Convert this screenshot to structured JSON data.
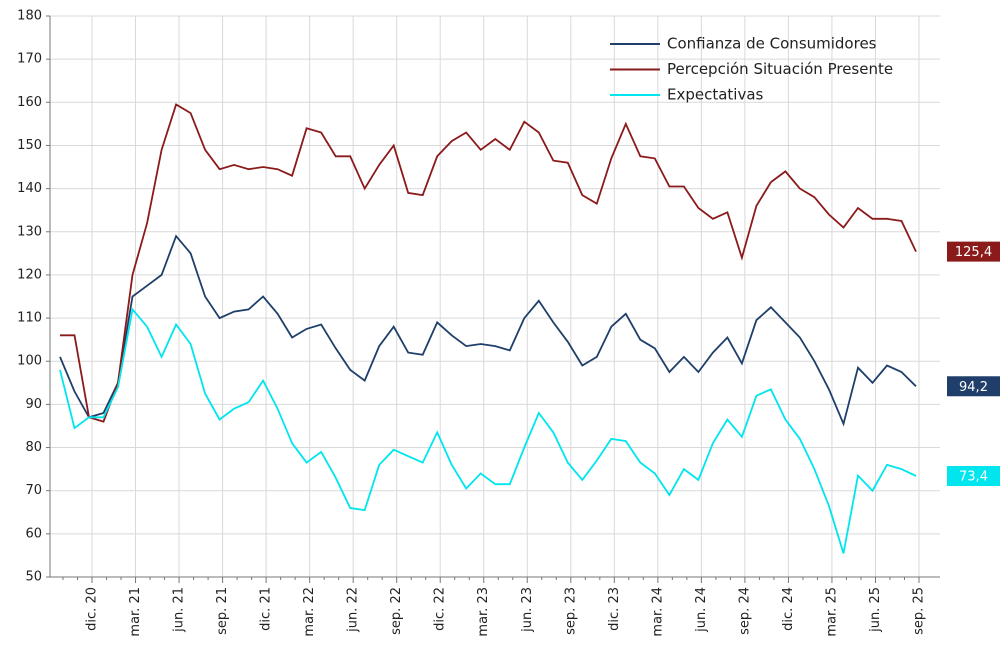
{
  "chart_data": {
    "type": "line",
    "categories": [
      null,
      null,
      "dic. 20",
      null,
      null,
      "mar. 21",
      null,
      null,
      "jun. 21",
      null,
      null,
      "sep. 21",
      null,
      null,
      "dic. 21",
      null,
      null,
      "mar. 22",
      null,
      null,
      "jun. 22",
      null,
      null,
      "sep. 22",
      null,
      null,
      "dic. 22",
      null,
      null,
      "mar. 23",
      null,
      null,
      "jun. 23",
      null,
      null,
      "sep. 23",
      null,
      null,
      "dic. 23",
      null,
      null,
      "mar. 24",
      null,
      null,
      "jun. 24",
      null,
      null,
      "sep. 24",
      null,
      null,
      "dic. 24",
      null,
      null,
      "mar. 25",
      null,
      null,
      "jun. 25",
      null,
      null,
      "sep. 25"
    ],
    "series": [
      {
        "name": "Confianza de Consumidores",
        "color": "#1f3f6a",
        "values": [
          101,
          93,
          87,
          88,
          95,
          115,
          117.5,
          120,
          129,
          125,
          115,
          110,
          111.5,
          112,
          115,
          111,
          105.5,
          107.5,
          108.5,
          103,
          98,
          95.5,
          103.5,
          108,
          102,
          101.5,
          109,
          106,
          103.5,
          104,
          103.5,
          102.5,
          110,
          114,
          109,
          104.5,
          99,
          101,
          108,
          111,
          105,
          103,
          97.5,
          101,
          97.5,
          102,
          105.5,
          99.5,
          109.5,
          112.5,
          109,
          105.5,
          100,
          93.5,
          85.5,
          98.5,
          95,
          99,
          97.5,
          94.2
        ],
        "value_labels": [
          null,
          null,
          null,
          null,
          null,
          null,
          null,
          null,
          null,
          null,
          null,
          null,
          null,
          null,
          null,
          null,
          null,
          null,
          null,
          null,
          null,
          null,
          null,
          null,
          null,
          null,
          null,
          null,
          null,
          null,
          null,
          null,
          null,
          null,
          null,
          null,
          null,
          null,
          null,
          null,
          null,
          null,
          null,
          null,
          null,
          null,
          null,
          null,
          null,
          null,
          null,
          null,
          null,
          null,
          null,
          null,
          null,
          null,
          null,
          "94,2"
        ]
      },
      {
        "name": "Percepción Situación Presente",
        "color": "#8b1a1a",
        "values": [
          106,
          106,
          87,
          86,
          95,
          120,
          132,
          149,
          159.5,
          157.5,
          149,
          144.5,
          145.5,
          144.5,
          145,
          144.5,
          143,
          154,
          153,
          147.5,
          147.5,
          140,
          145.5,
          150,
          139,
          138.5,
          147.5,
          151,
          153,
          149,
          151.5,
          149,
          155.5,
          153,
          146.5,
          146,
          138.5,
          136.5,
          147,
          155,
          147.5,
          147,
          140.5,
          140.5,
          135.5,
          133,
          134.5,
          124,
          136,
          141.5,
          144,
          140,
          138,
          134,
          131,
          135.5,
          133,
          133,
          132.5,
          125.4
        ],
        "value_labels": [
          null,
          null,
          null,
          null,
          null,
          null,
          null,
          null,
          null,
          null,
          null,
          null,
          null,
          null,
          null,
          null,
          null,
          null,
          null,
          null,
          null,
          null,
          null,
          null,
          null,
          null,
          null,
          null,
          null,
          null,
          null,
          null,
          null,
          null,
          null,
          null,
          null,
          null,
          null,
          null,
          null,
          null,
          null,
          null,
          null,
          null,
          null,
          null,
          null,
          null,
          null,
          null,
          null,
          null,
          null,
          null,
          null,
          null,
          null,
          "125,4"
        ]
      },
      {
        "name": "Expectativas",
        "color": "#00e5ee",
        "values": [
          98,
          84.5,
          87,
          87,
          94,
          112,
          108,
          101,
          108.5,
          104,
          92.5,
          86.5,
          89,
          90.5,
          95.5,
          89,
          81,
          76.5,
          79,
          73,
          66,
          65.5,
          76,
          79.5,
          78,
          76.5,
          83.5,
          76,
          70.5,
          74,
          71.5,
          71.5,
          80,
          88,
          83.5,
          76.5,
          72.5,
          77,
          82,
          81.5,
          76.5,
          74,
          69,
          75,
          72.5,
          81,
          86.5,
          82.5,
          92,
          93.5,
          86.5,
          82,
          75,
          66.5,
          55.5,
          73.5,
          70,
          76,
          75,
          73.4
        ],
        "value_labels": [
          null,
          null,
          null,
          null,
          null,
          null,
          null,
          null,
          null,
          null,
          null,
          null,
          null,
          null,
          null,
          null,
          null,
          null,
          null,
          null,
          null,
          null,
          null,
          null,
          null,
          null,
          null,
          null,
          null,
          null,
          null,
          null,
          null,
          null,
          null,
          null,
          null,
          null,
          null,
          null,
          null,
          null,
          null,
          null,
          null,
          null,
          null,
          null,
          null,
          null,
          null,
          null,
          null,
          null,
          null,
          null,
          null,
          null,
          null,
          "73,4"
        ]
      }
    ],
    "ylim": [
      50,
      180
    ],
    "yticks": [
      50,
      60,
      70,
      80,
      90,
      100,
      110,
      120,
      130,
      140,
      150,
      160,
      170,
      180
    ],
    "grid": true,
    "legend": "top-right"
  }
}
